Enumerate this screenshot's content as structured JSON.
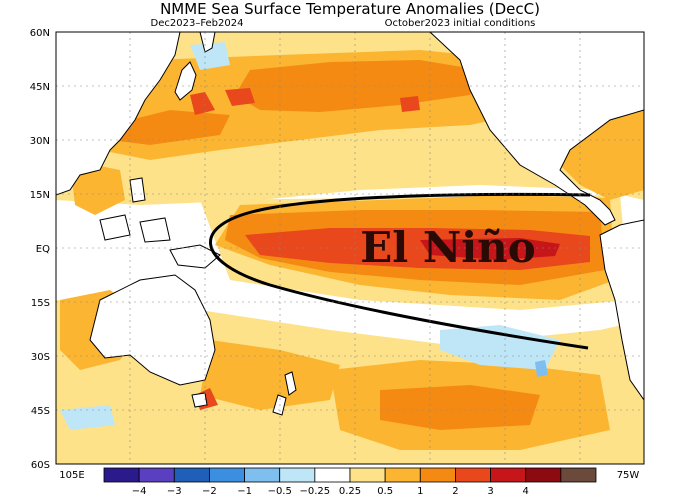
{
  "title": "NMME Sea Surface Temperature Anomalies (DecC)",
  "period": "Dec2023–Feb2024",
  "initial_conditions": "October2023 initial conditions",
  "annotation": "El Niño",
  "lat_labels": [
    "60N",
    "45N",
    "30N",
    "15N",
    "EQ",
    "15S",
    "30S",
    "45S",
    "60S"
  ],
  "lon_labels": {
    "west": "105E",
    "east": "75W"
  },
  "colorbar": {
    "labels": [
      "−4",
      "−3",
      "−2",
      "−1",
      "−0.5",
      "−0.25",
      "0.25",
      "0.5",
      "1",
      "2",
      "3",
      "4"
    ],
    "colors": [
      "#2b1a8c",
      "#5a3fc0",
      "#1f5fb8",
      "#3c8fe0",
      "#7fbfef",
      "#bfe6f7",
      "#ffffff",
      "#fde28a",
      "#fbb531",
      "#f58a12",
      "#e8481c",
      "#c6161a",
      "#8c0b10",
      "#6b4a3c"
    ]
  },
  "chart_data": {
    "type": "heatmap",
    "title": "NMME Sea Surface Temperature Anomalies (DecC)",
    "subtitle": "Dec2023–Feb2024 / October2023 initial conditions",
    "units": "DecC",
    "lat_range": [
      -60,
      60
    ],
    "lon_range": [
      "105E",
      "75W"
    ],
    "levels": [
      -4,
      -3,
      -2,
      -1,
      -0.5,
      -0.25,
      0.25,
      0.5,
      1,
      2,
      3,
      4
    ],
    "features": [
      {
        "region": "Eastern/central equatorial Pacific (El Niño tongue)",
        "anomaly_range": [
          2,
          3
        ]
      },
      {
        "region": "North Pacific subtropics",
        "anomaly_range": [
          0.5,
          2
        ]
      },
      {
        "region": "Sea of Japan / Kuroshio",
        "anomaly_range": [
          1,
          3
        ]
      },
      {
        "region": "Southern Pacific 40–55S",
        "anomaly_range": [
          0.5,
          2
        ]
      },
      {
        "region": "Tasman Sea / SE Australia",
        "anomaly_range": [
          1,
          3
        ]
      },
      {
        "region": "Central South Pacific",
        "anomaly_range": [
          -0.5,
          -0.25
        ]
      }
    ]
  }
}
